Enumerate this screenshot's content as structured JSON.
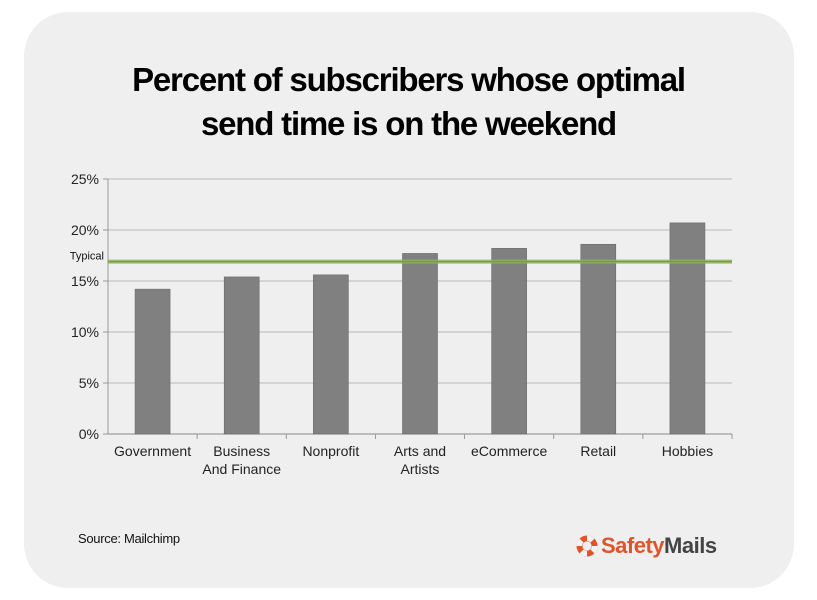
{
  "title_lines": [
    "Percent of subscribers whose optimal",
    "send time is on the weekend"
  ],
  "source": "Source: Mailchimp",
  "brand": {
    "part1": "Safety",
    "part2": "Mails",
    "icon": "lifebuoy-icon",
    "accent_color": "#e0542a"
  },
  "chart_data": {
    "type": "bar",
    "title": "Percent of subscribers whose optimal send time is on the weekend",
    "categories": [
      [
        "Government"
      ],
      [
        "Business",
        "And Finance"
      ],
      [
        "Nonprofit"
      ],
      [
        "Arts and",
        "Artists"
      ],
      [
        "eCommerce"
      ],
      [
        "Retail"
      ],
      [
        "Hobbies"
      ]
    ],
    "values": [
      14.2,
      15.4,
      15.6,
      17.7,
      18.2,
      18.6,
      20.7
    ],
    "ylim": [
      0,
      25
    ],
    "yticks": [
      0,
      5,
      10,
      15,
      20,
      25
    ],
    "ytick_labels": [
      "0%",
      "5%",
      "10%",
      "15%",
      "20%",
      "25%"
    ],
    "reference_line": {
      "label": "Typical",
      "value": 16.9,
      "color": "#8db35a"
    },
    "bar_color": "#808080",
    "grid": true
  }
}
